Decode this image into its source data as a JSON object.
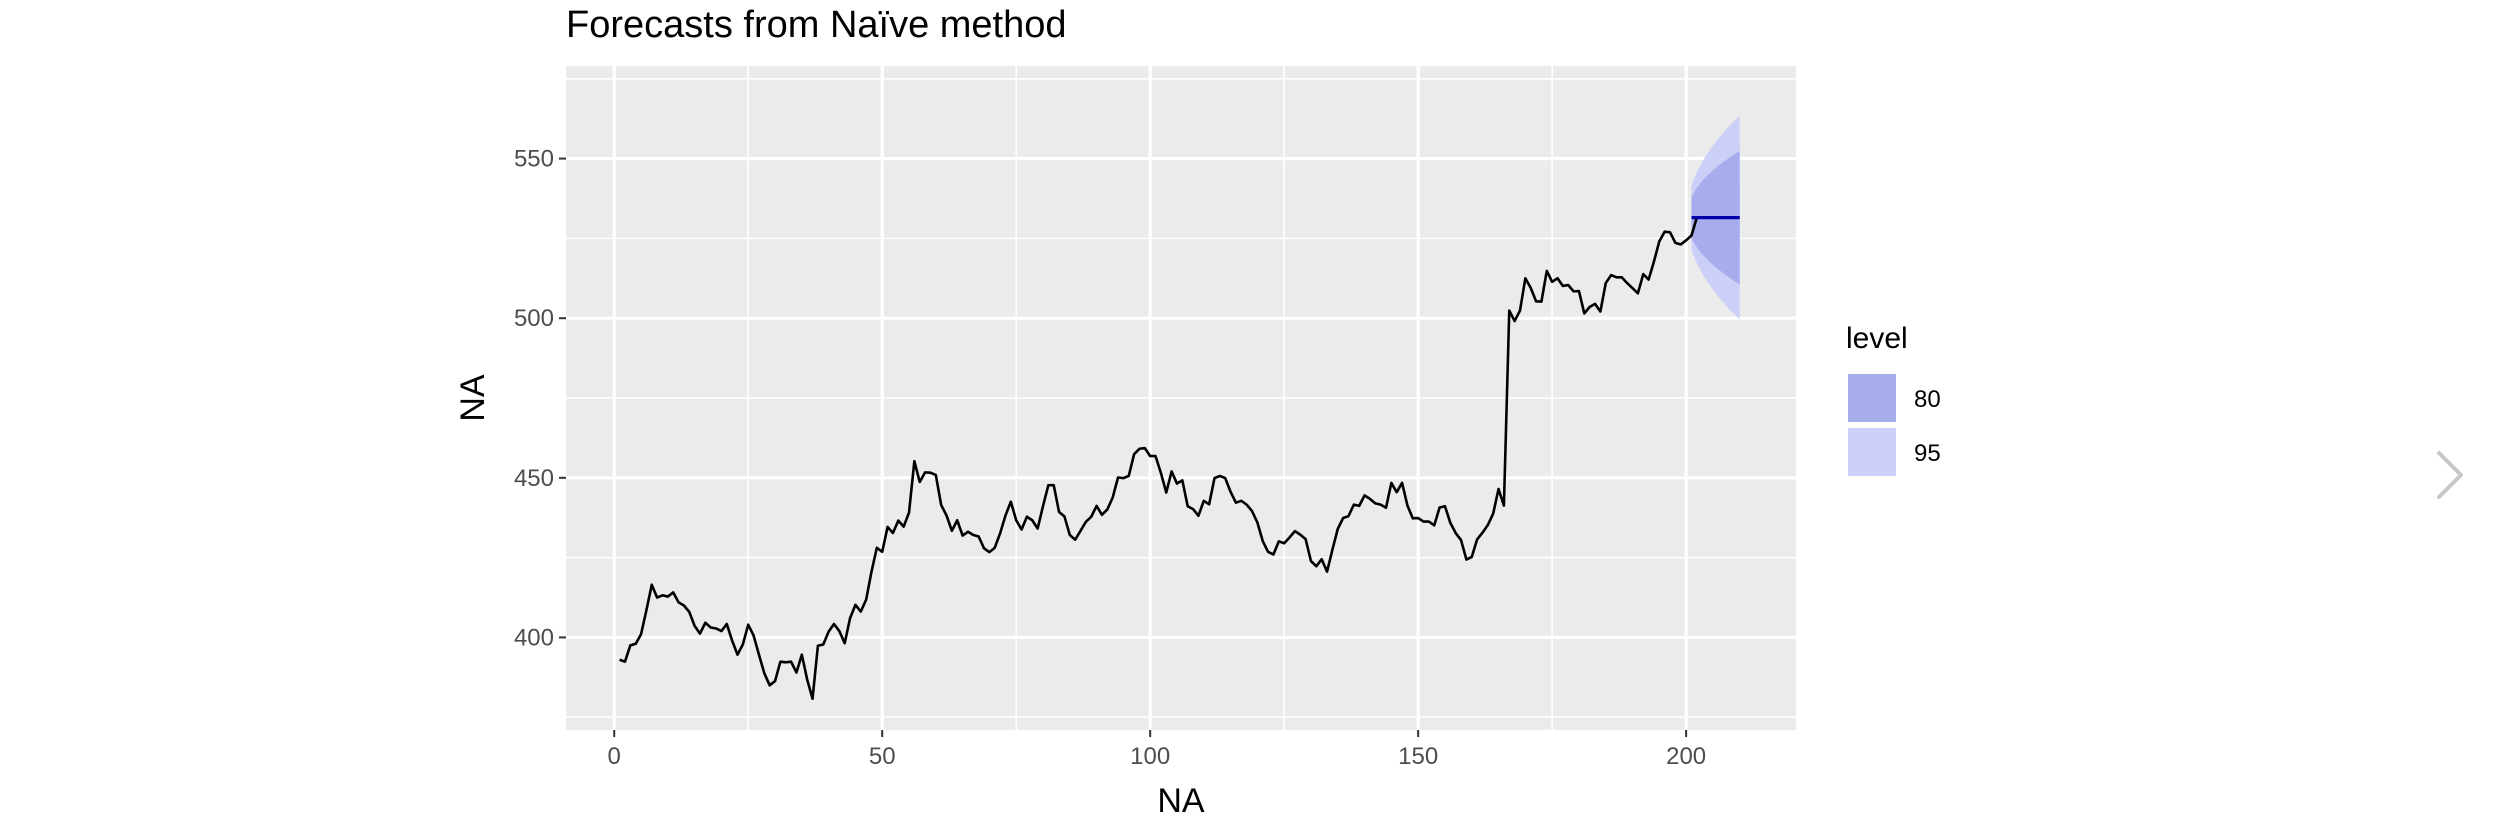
{
  "viewer": {
    "next_icon": "chevron-right-icon"
  },
  "chart_data": {
    "type": "line",
    "title": "Forecasts from Naïve method",
    "xlabel": "NA",
    "ylabel": "NA",
    "xlim": [
      -9,
      220.5
    ],
    "ylim": [
      371,
      579
    ],
    "x_ticks": [
      0,
      50,
      100,
      150,
      200
    ],
    "y_ticks": [
      400,
      450,
      500,
      550
    ],
    "grid": true,
    "series": [
      {
        "role": "observed",
        "color": "#000000",
        "x_start": 1,
        "values": [
          393,
          392.4,
          397.5,
          398,
          401,
          408.5,
          416.5,
          412.5,
          413.2,
          412.8,
          414.1,
          411,
          410,
          408,
          403.6,
          401.2,
          404.6,
          403.1,
          402.8,
          402,
          404.2,
          399,
          394.6,
          397.8,
          404,
          400.6,
          394.6,
          388.8,
          385,
          386.3,
          392.4,
          392.2,
          392.4,
          389,
          394.6,
          386.8,
          380.8,
          397.4,
          397.8,
          401.8,
          404.2,
          402,
          398.2,
          406,
          410.2,
          408.1,
          411.8,
          420.6,
          428.1,
          426.8,
          434.6,
          432.7,
          436.6,
          434.7,
          439.1,
          455.2,
          448.7,
          451.7,
          451.6,
          450.9,
          441.5,
          438.2,
          433.4,
          436.7,
          431.9,
          433.1,
          432.1,
          431.6,
          427.9,
          426.7,
          428.1,
          432.6,
          438.2,
          442.5,
          436.7,
          433.8,
          437.8,
          436.7,
          434.1,
          441.1,
          447.7,
          447.7,
          439.3,
          437.9,
          432.1,
          430.6,
          433.4,
          436.2,
          437.8,
          441.2,
          438.4,
          440.1,
          443.8,
          450.1,
          449.9,
          450.6,
          457.4,
          459.1,
          459.3,
          456.8,
          456.8,
          451.5,
          445.4,
          452,
          448.2,
          449.2,
          441.1,
          440.2,
          438.1,
          442.8,
          441.7,
          449.9,
          450.6,
          449.9,
          445.6,
          442.2,
          442.8,
          441.6,
          439.6,
          436,
          430.2,
          426.8,
          426,
          430.1,
          429.5,
          431.3,
          433.3,
          432.2,
          430.8,
          423.9,
          422.3,
          424.5,
          420.6,
          427.5,
          434,
          437.4,
          438,
          441.6,
          441.2,
          444.5,
          443.4,
          442,
          441.6,
          440.6,
          448.4,
          445.5,
          448.4,
          441.3,
          437.3,
          437.4,
          436.3,
          436.3,
          435.1,
          440.7,
          441.1,
          435.9,
          432.7,
          430.5,
          424.4,
          425.2,
          430.7,
          432.8,
          435.2,
          438.8,
          446.5,
          441.3,
          502.4,
          499.1,
          502.4,
          512.5,
          509.5,
          505.3,
          505.2,
          514.8,
          511.4,
          512.5,
          510.1,
          510.4,
          508.4,
          508.5,
          501.5,
          503.5,
          504.5,
          502.1,
          511,
          513.5,
          512.8,
          512.8,
          511,
          509.4,
          507.8,
          513.8,
          512.1,
          517.8,
          524.1,
          527.1,
          526.9,
          523.6,
          523.1,
          524.4,
          525.9,
          531.5
        ]
      },
      {
        "role": "point_forecast",
        "color": "#0000aa",
        "x": [
          201,
          210
        ],
        "values": [
          531.5,
          531.5
        ]
      }
    ],
    "intervals": [
      {
        "level": "95",
        "color": "#ccd0f8",
        "x": [
          201,
          202,
          203,
          204,
          205,
          206,
          207,
          208,
          209,
          210
        ],
        "lower": [
          521.4,
          517.2,
          514.0,
          511.3,
          508.9,
          506.8,
          504.8,
          502.9,
          501.2,
          499.5
        ],
        "upper": [
          541.6,
          545.8,
          549.0,
          551.7,
          554.1,
          556.2,
          558.2,
          560.1,
          561.8,
          563.5
        ]
      },
      {
        "level": "80",
        "color": "#a6acec",
        "x": [
          201,
          202,
          203,
          204,
          205,
          206,
          207,
          208,
          209,
          210
        ],
        "lower": [
          524.9,
          522.2,
          520.0,
          518.3,
          516.7,
          515.3,
          514.0,
          512.8,
          511.6,
          510.6
        ],
        "upper": [
          538.1,
          540.8,
          543.0,
          544.7,
          546.3,
          547.7,
          549.0,
          550.2,
          551.4,
          552.4
        ]
      }
    ],
    "legend": {
      "title": "level",
      "placement": "right",
      "entries": [
        {
          "label": "80",
          "color": "#a6acec"
        },
        {
          "label": "95",
          "color": "#ccd0f8"
        }
      ]
    }
  }
}
